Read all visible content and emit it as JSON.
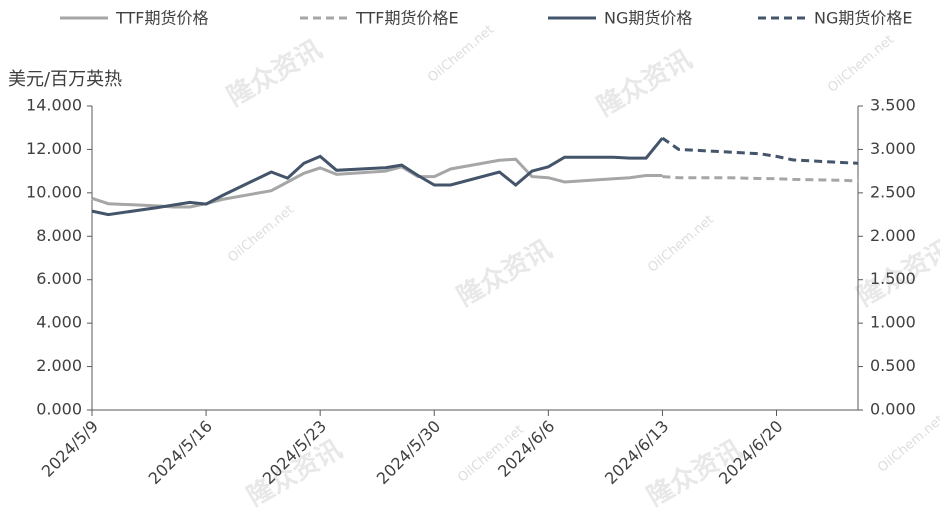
{
  "chart_data": {
    "type": "line",
    "y_label": "美元/百万英热",
    "watermark": "隆众资讯",
    "watermark_site": "OilChem.net",
    "x": [
      "2024/5/9",
      "2024/5/10",
      "2024/5/13",
      "2024/5/14",
      "2024/5/15",
      "2024/5/16",
      "2024/5/17",
      "2024/5/20",
      "2024/5/21",
      "2024/5/22",
      "2024/5/23",
      "2024/5/24",
      "2024/5/27",
      "2024/5/28",
      "2024/5/29",
      "2024/5/30",
      "2024/5/31",
      "2024/6/3",
      "2024/6/4",
      "2024/6/5",
      "2024/6/6",
      "2024/6/7",
      "2024/6/10",
      "2024/6/11",
      "2024/6/12",
      "2024/6/13",
      "2024/6/14",
      "2024/6/17",
      "2024/6/18",
      "2024/6/19",
      "2024/6/20",
      "2024/6/21",
      "2024/6/24",
      "2024/6/25"
    ],
    "xlim": [
      "2024/5/9",
      "2024/6/25"
    ],
    "xticks": [
      "2024/5/9",
      "2024/5/16",
      "2024/5/23",
      "2024/5/30",
      "2024/6/6",
      "2024/6/13",
      "2024/6/20"
    ],
    "ylim": [
      0,
      14
    ],
    "yticks": [
      {
        "value": 0,
        "label": "0.000"
      },
      {
        "value": 2,
        "label": "2.000"
      },
      {
        "value": 4,
        "label": "4.000"
      },
      {
        "value": 6,
        "label": "6.000"
      },
      {
        "value": 8,
        "label": "8.000"
      },
      {
        "value": 10,
        "label": "10.000"
      },
      {
        "value": 12,
        "label": "12.000"
      },
      {
        "value": 14,
        "label": "14.000"
      }
    ],
    "y2lim": [
      0,
      3.5
    ],
    "y2ticks": [
      {
        "value": 0,
        "label": "0.000"
      },
      {
        "value": 0.5,
        "label": "0.500"
      },
      {
        "value": 1,
        "label": "1.000"
      },
      {
        "value": 1.5,
        "label": "1.500"
      },
      {
        "value": 2,
        "label": "2.000"
      },
      {
        "value": 2.5,
        "label": "2.500"
      },
      {
        "value": 3,
        "label": "3.000"
      },
      {
        "value": 3.5,
        "label": "3.500"
      }
    ],
    "series": [
      {
        "name": "TTF期货价格",
        "color": "#a6a6a6",
        "dashed": false,
        "values": [
          9.75,
          9.5,
          9.4,
          9.35,
          9.35,
          9.5,
          9.7,
          10.1,
          10.5,
          10.9,
          11.15,
          10.85,
          11.0,
          11.2,
          10.75,
          10.75,
          11.1,
          11.5,
          11.55,
          10.75,
          10.7,
          10.5,
          10.65,
          10.7,
          10.8,
          10.8,
          null,
          null,
          null,
          null,
          null,
          null,
          null,
          null
        ]
      },
      {
        "name": "TTF期货价格E",
        "color": "#a6a6a6",
        "dashed": true,
        "values": [
          null,
          null,
          null,
          null,
          null,
          null,
          null,
          null,
          null,
          null,
          null,
          null,
          null,
          null,
          null,
          null,
          null,
          null,
          null,
          null,
          null,
          null,
          null,
          null,
          null,
          10.75,
          10.7,
          10.7,
          10.68,
          10.66,
          10.65,
          10.62,
          10.58,
          10.55
        ]
      },
      {
        "name": "NG期货价格",
        "color": "#44546a",
        "dashed": false,
        "axis": "y2",
        "values": [
          2.29,
          2.25,
          2.33,
          2.36,
          2.39,
          2.37,
          2.47,
          2.74,
          2.67,
          2.84,
          2.92,
          2.76,
          2.79,
          2.82,
          2.7,
          2.59,
          2.59,
          2.74,
          2.59,
          2.75,
          2.8,
          2.91,
          2.91,
          2.9,
          2.9,
          3.13,
          null,
          null,
          null,
          null,
          null,
          null,
          null,
          null
        ]
      },
      {
        "name": "NG期货价格E",
        "color": "#44546a",
        "dashed": true,
        "axis": "y2",
        "values": [
          null,
          null,
          null,
          null,
          null,
          null,
          null,
          null,
          null,
          null,
          null,
          null,
          null,
          null,
          null,
          null,
          null,
          null,
          null,
          null,
          null,
          null,
          null,
          null,
          null,
          3.13,
          3.0,
          2.97,
          2.96,
          2.95,
          2.92,
          2.88,
          2.85,
          2.84
        ]
      }
    ]
  }
}
